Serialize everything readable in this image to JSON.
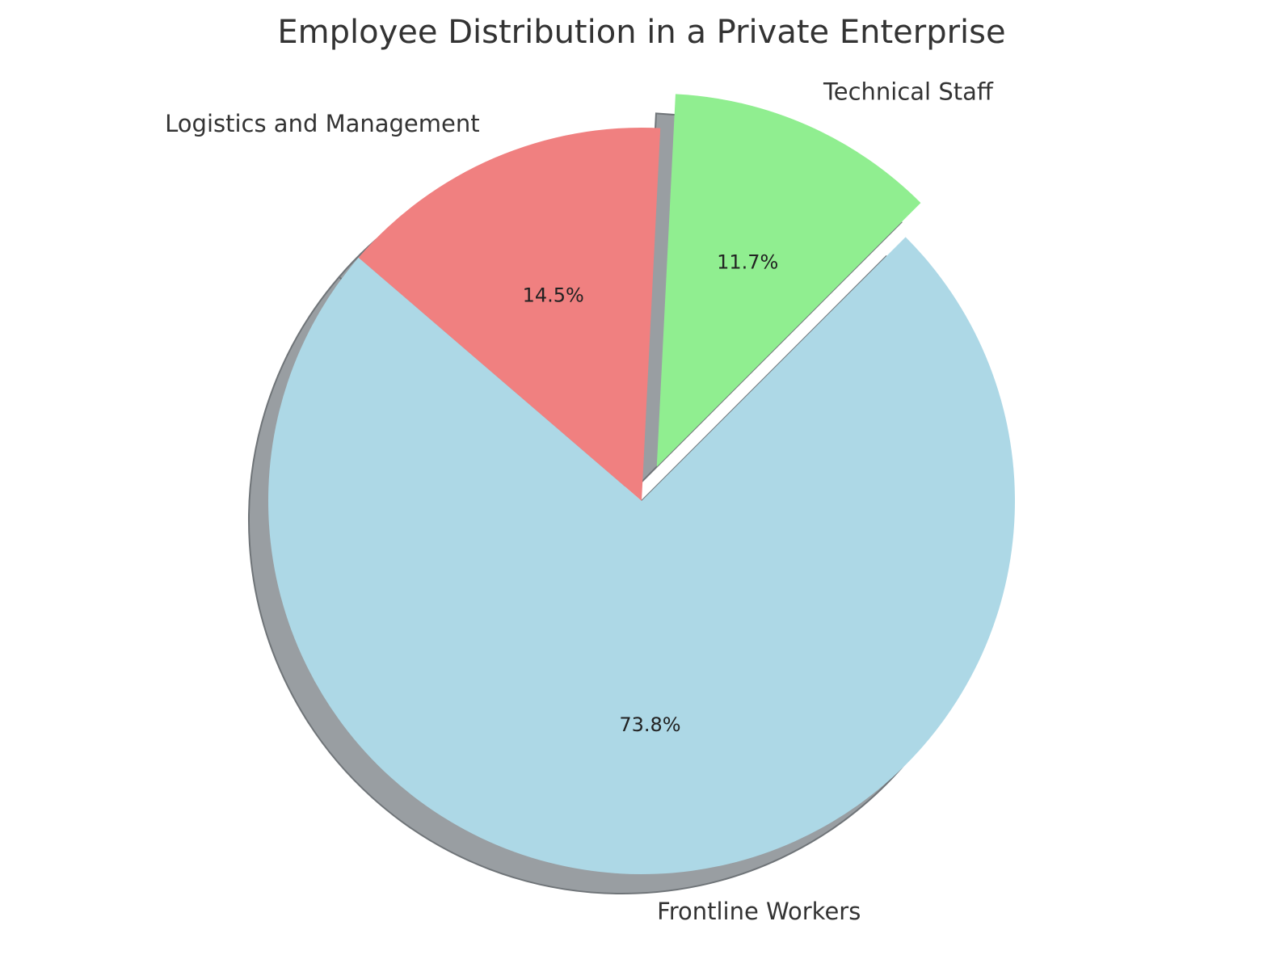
{
  "chart_data": {
    "type": "pie",
    "title": "Employee Distribution in a Private Enterprise",
    "labels": [
      "Technical Staff",
      "Logistics and Management",
      "Frontline Workers"
    ],
    "values": [
      11.7,
      14.5,
      73.8
    ],
    "percent_labels": [
      "11.7%",
      "14.5%",
      "73.8%"
    ],
    "colors": [
      "#90ee90",
      "#f08080",
      "#add8e6"
    ],
    "exploded": [
      "Technical Staff"
    ],
    "shadow": true,
    "shadow_color": "#999ea2",
    "start_angle_deg": 45,
    "direction": "counterclockwise"
  }
}
